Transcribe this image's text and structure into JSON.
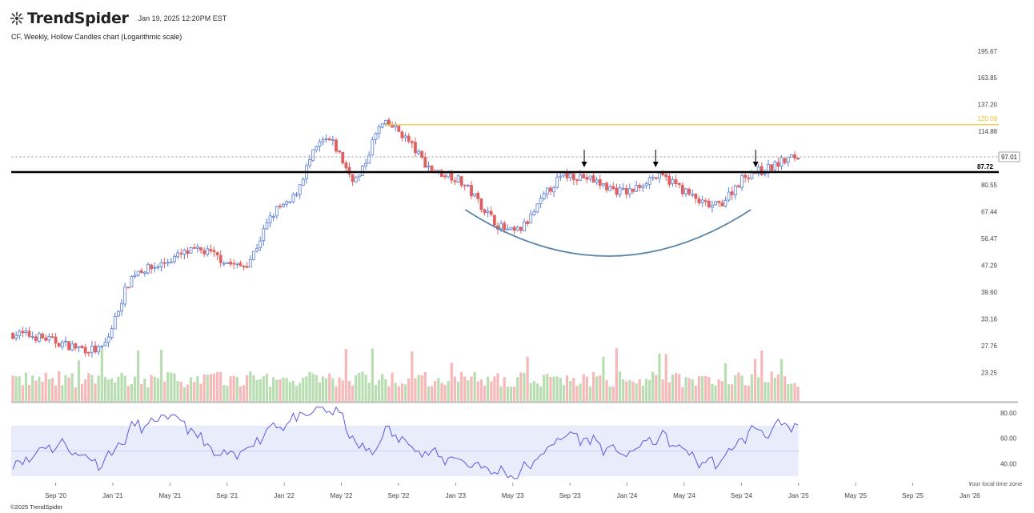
{
  "header": {
    "logo_text": "TrendSpider",
    "timestamp": "Jan 19, 2025 12:20PM EST"
  },
  "chart_title": "CF, Weekly, Hollow Candles chart (Logarithmic scale)",
  "footer": {
    "copyright": "©2025 TrendSpider",
    "timezone_note": "Your local time zone"
  },
  "colors": {
    "up": "#5b7fd6",
    "down": "#e06060",
    "vol_up": "#b7ddb0",
    "vol_down": "#f6b8b8",
    "resistance": "#f0c419",
    "support": "#000000",
    "cup": "#5a86ab",
    "rsi_line": "#5a5ae0",
    "rsi_band": "#e8ecfb"
  },
  "chart_data": [
    {
      "type": "candlestick",
      "scale": "log",
      "x_ticks": [
        "Sep '20",
        "Jan '21",
        "May '21",
        "Sep '21",
        "Jan '22",
        "May '22",
        "Sep '22",
        "Jan '23",
        "May '23",
        "Sep '23",
        "Jan '24",
        "May '24",
        "Sep '24",
        "Jan '25",
        "May '25",
        "Sep '25",
        "Jan '26"
      ],
      "y_ticks": [
        "195.67",
        "163.85",
        "137.20",
        "114.88",
        "80.55",
        "67.44",
        "56.47",
        "47.29",
        "39.60",
        "33.16",
        "27.76",
        "23.25"
      ],
      "ylim": [
        21.5,
        205
      ],
      "current_price": "97.01",
      "levels": [
        {
          "name": "resistance",
          "value": 120.09,
          "label": "120.09"
        },
        {
          "name": "support",
          "value": 87.72,
          "label": "87.72"
        }
      ],
      "arrows_at": [
        "Oct '23",
        "Mar '24",
        "Oct '24"
      ],
      "cup_pattern": "rounded bottom from Jan '23 to Oct '24",
      "key_points": [
        {
          "date": "Jun 2020",
          "close": 30
        },
        {
          "date": "Dec 2020",
          "close": 27
        },
        {
          "date": "Mar 2021",
          "close": 46
        },
        {
          "date": "Jul 2021",
          "close": 52
        },
        {
          "date": "Oct 2021",
          "close": 47
        },
        {
          "date": "Jan 2022",
          "close": 70
        },
        {
          "date": "Apr 2022",
          "close": 108
        },
        {
          "date": "Jun 2022",
          "close": 84
        },
        {
          "date": "Aug 2022",
          "close": 120
        },
        {
          "date": "Dec 2022",
          "close": 87
        },
        {
          "date": "May 2023",
          "close": 59
        },
        {
          "date": "Sep 2023",
          "close": 86
        },
        {
          "date": "Jan 2024",
          "close": 77
        },
        {
          "date": "Mar 2024",
          "close": 85
        },
        {
          "date": "Jul 2024",
          "close": 70
        },
        {
          "date": "Oct 2024",
          "close": 88
        },
        {
          "date": "Jan 2025",
          "close": 97.01
        }
      ],
      "volume": "weekly volume bars, green on up weeks, red on down weeks"
    },
    {
      "type": "line",
      "name": "RSI",
      "y_ticks": [
        "80.00",
        "60.00",
        "40.00"
      ],
      "ylim": [
        25,
        85
      ],
      "band": [
        30,
        70
      ],
      "midline": 50,
      "key_points": [
        {
          "date": "Jun 2020",
          "value": 40
        },
        {
          "date": "Sep 2020",
          "value": 55
        },
        {
          "date": "Dec 2020",
          "value": 42
        },
        {
          "date": "Mar 2021",
          "value": 70
        },
        {
          "date": "May 2021",
          "value": 76
        },
        {
          "date": "Sep 2021",
          "value": 45
        },
        {
          "date": "Jan 2022",
          "value": 72
        },
        {
          "date": "Apr 2022",
          "value": 84
        },
        {
          "date": "Jul 2022",
          "value": 48
        },
        {
          "date": "Aug 2022",
          "value": 64
        },
        {
          "date": "Dec 2022",
          "value": 45
        },
        {
          "date": "May 2023",
          "value": 32
        },
        {
          "date": "Sep 2023",
          "value": 62
        },
        {
          "date": "Jan 2024",
          "value": 48
        },
        {
          "date": "Mar 2024",
          "value": 60
        },
        {
          "date": "Jul 2024",
          "value": 40
        },
        {
          "date": "Oct 2024",
          "value": 66
        },
        {
          "date": "Jan 2025",
          "value": 69
        }
      ]
    }
  ]
}
